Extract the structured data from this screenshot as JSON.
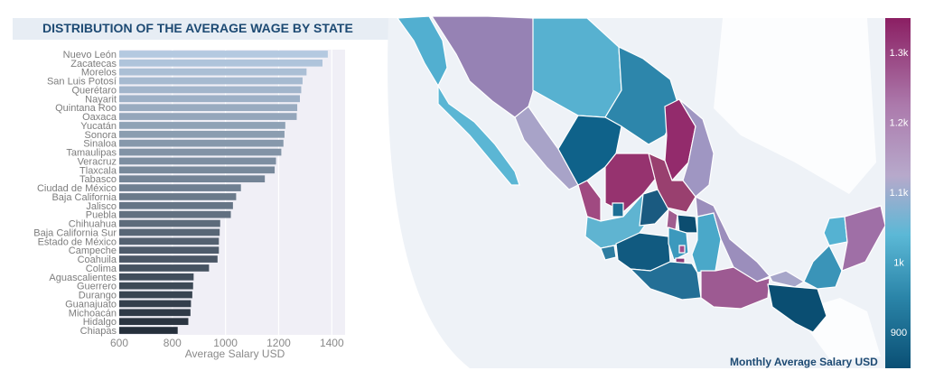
{
  "chart_data": [
    {
      "type": "bar",
      "orientation": "horizontal",
      "title": "DISTRIBUTION OF THE AVERAGE WAGE BY STATE",
      "xlabel": "Average Salary USD",
      "xlim": [
        600,
        1450
      ],
      "xticks": [
        "600",
        "800",
        "1000",
        "1200",
        "1400"
      ],
      "grid": true,
      "categories": [
        "Nuevo León",
        "Zacatecas",
        "Morelos",
        "San Luis Potosí",
        "Querétaro",
        "Nayarit",
        "Quintana Roo",
        "Oaxaca",
        "Yucatán",
        "Sonora",
        "Sinaloa",
        "Tamaulipas",
        "Veracruz",
        "Tlaxcala",
        "Tabasco",
        "Ciudad de México",
        "Baja California",
        "Jalisco",
        "Puebla",
        "Chihuahua",
        "Baja California Sur",
        "Estado de México",
        "Campeche",
        "Coahuila",
        "Colima",
        "Aguascalientes",
        "Guerrero",
        "Durango",
        "Guanajuato",
        "Michoacán",
        "Hidalgo",
        "Chiapas"
      ],
      "values": [
        1385,
        1365,
        1305,
        1290,
        1285,
        1280,
        1270,
        1268,
        1225,
        1222,
        1218,
        1210,
        1190,
        1185,
        1148,
        1058,
        1040,
        1028,
        1020,
        980,
        978,
        975,
        975,
        970,
        938,
        880,
        878,
        875,
        870,
        868,
        860,
        820
      ]
    },
    {
      "type": "map",
      "title": "Monthly Average Salary USD",
      "colorbar": {
        "ticks": [
          "1.3k",
          "1.2k",
          "1.1k",
          "1k",
          "900"
        ],
        "colors": [
          "#8b1f63",
          "#ac7aac",
          "#b7a9cb",
          "#5bb8d6",
          "#2a84a8",
          "#0a4f74"
        ]
      }
    }
  ]
}
